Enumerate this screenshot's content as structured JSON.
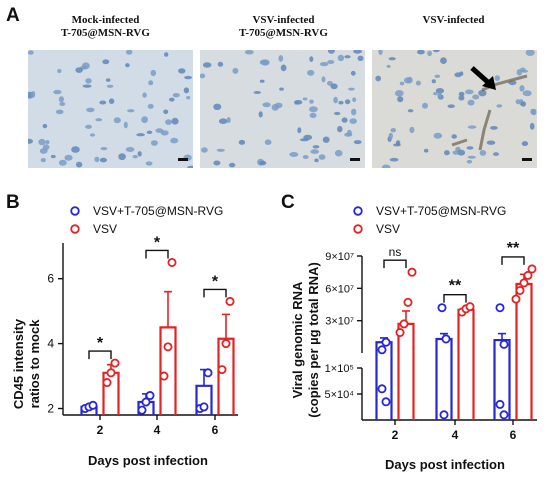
{
  "panel_a": {
    "letter": "A",
    "images": [
      {
        "title_line1": "Mock-infected",
        "title_line2": "T-705@MSN-RVG",
        "tint": "#c9d4df"
      },
      {
        "title_line1": "VSV-infected",
        "title_line2": "T-705@MSN-RVG",
        "tint": "#cfd6dc"
      },
      {
        "title_line1": "VSV-infected",
        "title_line2": "",
        "tint": "#d6d7d2"
      }
    ]
  },
  "chart_data": [
    {
      "panel": "B",
      "type": "scatter",
      "ylabel_line1": "CD45 intensity",
      "ylabel_line2": "ratios to mock",
      "xlabel": "Days post infection",
      "categories": [
        "2",
        "4",
        "6"
      ],
      "yticks": [
        "2",
        "4",
        "6"
      ],
      "ylim": [
        1.8,
        7.1
      ],
      "series": [
        {
          "name": "VSV+T-705@MSN-RVG",
          "color": "#2727d8",
          "mean": [
            2.05,
            2.2,
            2.7
          ],
          "sem": [
            0.05,
            0.25,
            0.5
          ],
          "points": [
            [
              2.0,
              2.05,
              2.1
            ],
            [
              1.95,
              2.2,
              2.4
            ],
            [
              2.0,
              2.05,
              3.1
            ]
          ]
        },
        {
          "name": "VSV",
          "color": "#e52222",
          "mean": [
            3.1,
            4.5,
            4.15
          ],
          "sem": [
            0.25,
            1.1,
            0.75
          ],
          "points": [
            [
              2.8,
              3.1,
              3.4
            ],
            [
              3.0,
              3.9,
              6.5
            ],
            [
              3.2,
              4.0,
              5.3
            ]
          ]
        }
      ],
      "significance": [
        "*",
        "*",
        "*"
      ]
    },
    {
      "panel": "C",
      "type": "scatter",
      "ylabel_line1": "Viral genomic RNA",
      "ylabel_line2": "(copies per µg total RNA)",
      "xlabel": "Days post infection",
      "categories": [
        "2",
        "4",
        "6"
      ],
      "yticks_upper": [
        "3×10⁷",
        "6×10⁷",
        "9×10⁷"
      ],
      "yticks_lower": [
        "5×10⁴",
        "1×10⁵"
      ],
      "upper_ylim": [
        0,
        90000000
      ],
      "lower_ylim": [
        0,
        100000
      ],
      "series": [
        {
          "name": "VSV+T-705@MSN-RVG",
          "color": "#2727d8",
          "mean_label": [
            "~1×10⁷",
            "~1.3×10⁷",
            "~1.2×10⁷"
          ],
          "mean_upper": [
            10000000,
            13000000,
            12000000
          ],
          "sem_upper": [
            4000000,
            5000000,
            6000000
          ],
          "points_upper": [
            [
              3000000,
              10000000
            ],
            [
              42000000,
              13000000
            ],
            [
              42000000,
              8000000
            ]
          ],
          "points_lower": [
            [
              60000,
              35000
            ],
            [
              10000
            ],
            [
              30000,
              10000
            ]
          ]
        },
        {
          "name": "VSV",
          "color": "#e52222",
          "mean_upper": [
            27000000,
            40000000,
            64000000
          ],
          "sem_upper": [
            12000000,
            2000000,
            9000000
          ],
          "points_upper": [
            [
              19000000,
              27000000,
              47000000,
              75000000
            ],
            [
              38000000,
              41000000,
              43000000
            ],
            [
              50000000,
              58000000,
              65000000,
              72000000,
              78000000
            ]
          ],
          "points_lower": [
            [],
            [],
            []
          ]
        }
      ],
      "significance": [
        "ns",
        "**",
        "**"
      ]
    }
  ]
}
